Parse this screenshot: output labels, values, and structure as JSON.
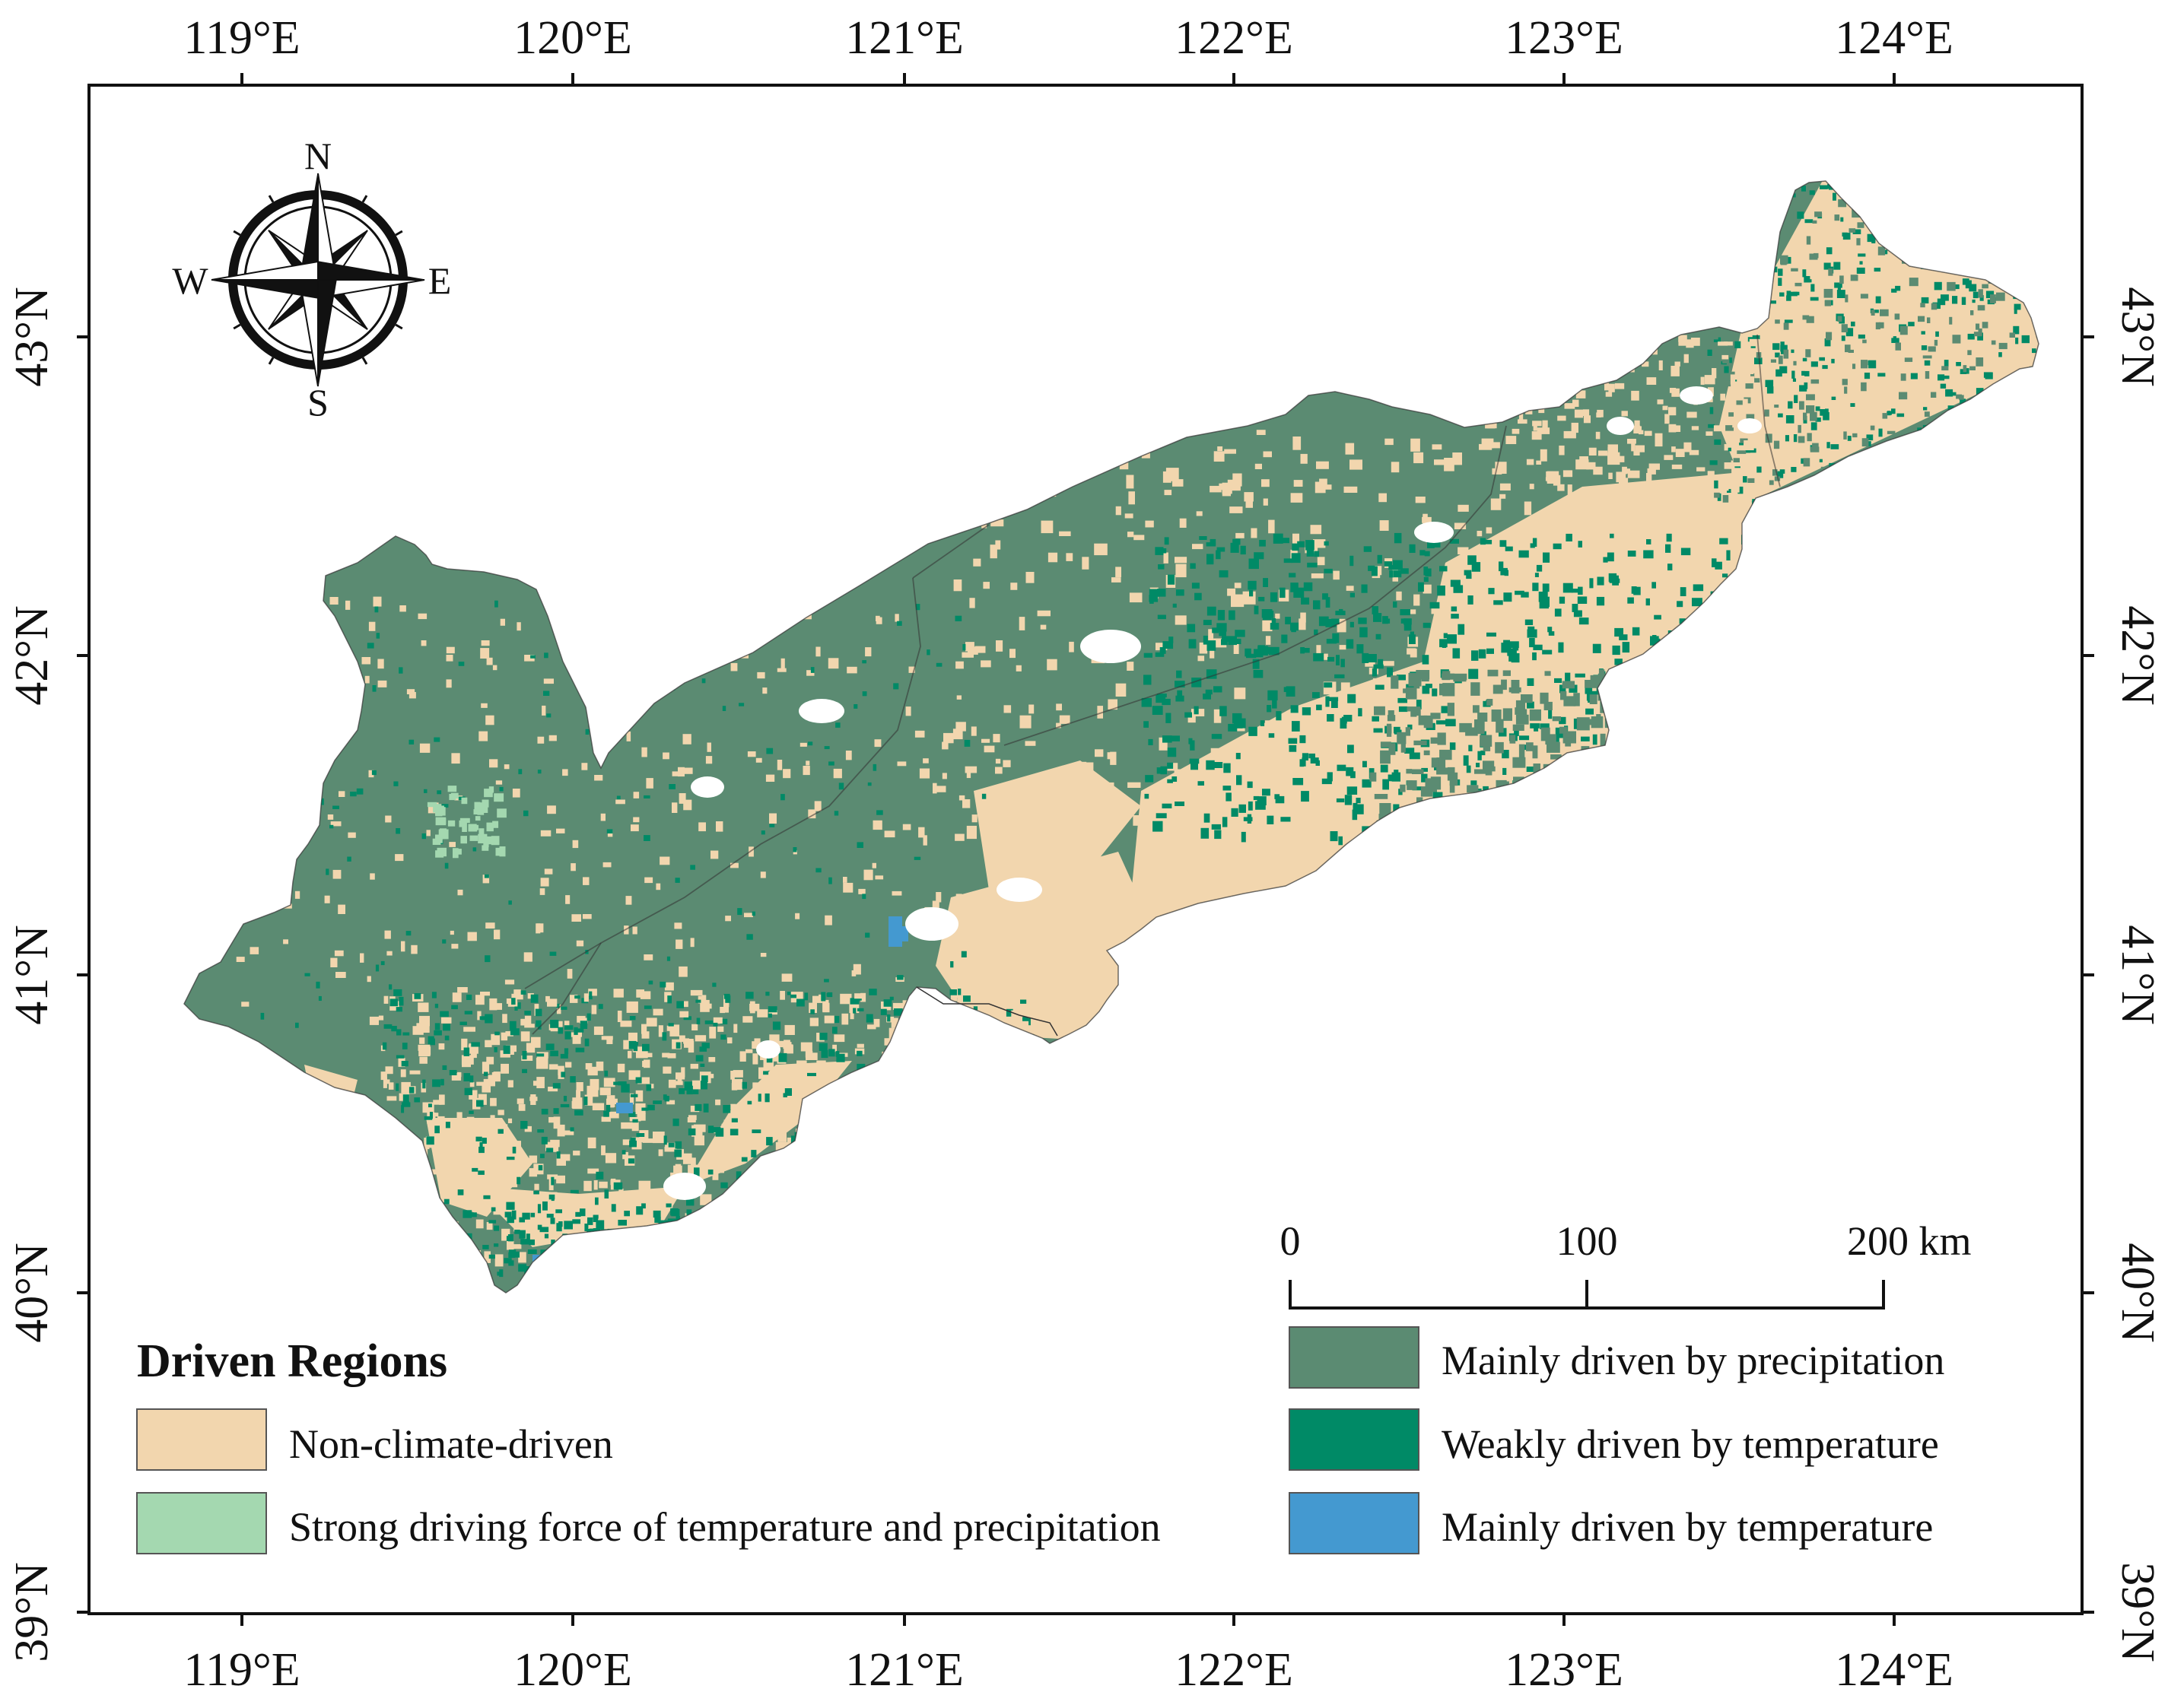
{
  "colors": {
    "non_climate": "#f2d6ae",
    "precip": "#5b8b72",
    "weak_temp": "#008a66",
    "strong_both": "#a4d8b0",
    "main_temp": "#4499d0",
    "frame": "#111111",
    "boundary": "#333333"
  },
  "axes": {
    "lon_ticks": [
      "119°E",
      "120°E",
      "121°E",
      "122°E",
      "123°E",
      "124°E"
    ],
    "lat_ticks": [
      "43°N",
      "42°N",
      "41°N",
      "40°N",
      "39°N"
    ]
  },
  "compass": {
    "n": "N",
    "s": "S",
    "e": "E",
    "w": "W",
    "icon": "compass-rose-icon"
  },
  "scale_bar": {
    "labels": [
      "0",
      "100",
      "200 km"
    ]
  },
  "legend": {
    "title": "Driven Regions",
    "items": [
      {
        "label": "Non-climate-driven",
        "color": "#f2d6ae"
      },
      {
        "label": "Strong driving force of temperature and precipitation",
        "color": "#a4d8b0"
      },
      {
        "label": "Mainly driven by precipitation",
        "color": "#5b8b72"
      },
      {
        "label": "Weakly driven by temperature",
        "color": "#008a66"
      },
      {
        "label": "Mainly driven by temperature",
        "color": "#4499d0"
      }
    ]
  }
}
